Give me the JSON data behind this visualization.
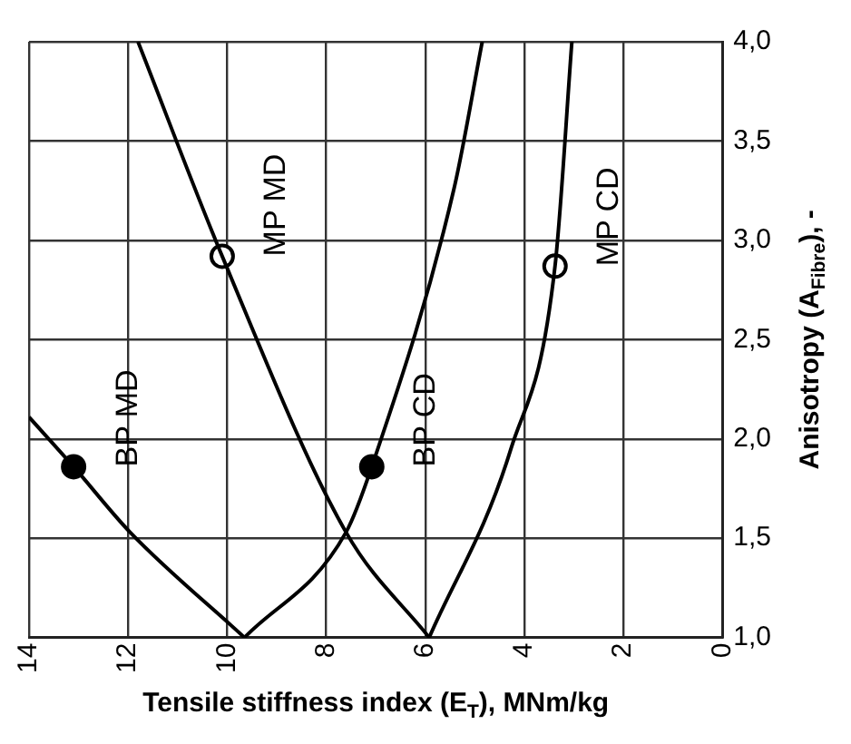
{
  "chart_data": {
    "type": "line",
    "xlabel": "Tensile stiffness index (E$_{T}$), MNm/kg",
    "ylabel": "Anisotropy (A$_{Fibre}$), -",
    "xlim": [
      14,
      0
    ],
    "xticks": [
      14,
      12,
      10,
      8,
      6,
      4,
      2,
      0
    ],
    "ylim": [
      1,
      4
    ],
    "yticks": [
      {
        "value": 1,
        "label": "1,0"
      },
      {
        "value": 1.5,
        "label": "1,5"
      },
      {
        "value": 2,
        "label": "2,0"
      },
      {
        "value": 2.5,
        "label": "2,5"
      },
      {
        "value": 3,
        "label": "3,0"
      },
      {
        "value": 3.5,
        "label": "3,5"
      },
      {
        "value": 4,
        "label": "4,0"
      }
    ],
    "grid": true,
    "legend": false,
    "line_style": "solid",
    "marker": "none",
    "series": [
      {
        "color": "#000000",
        "x": [
          9.65,
          11.96,
          13.1,
          14
        ],
        "values": [
          1.0,
          1.53,
          1.86,
          2.11
        ]
      },
      {
        "color": "#000000",
        "x": [
          9.65,
          7.6,
          7.08,
          5.42,
          4.85
        ],
        "values": [
          1.0,
          1.53,
          1.86,
          3.26,
          4.0
        ]
      },
      {
        "color": "#000000",
        "x": [
          5.92,
          7.6,
          10.1,
          11.8
        ],
        "values": [
          1.0,
          1.53,
          2.92,
          4.0
        ]
      },
      {
        "color": "#000000",
        "x": [
          5.92,
          4.27,
          3.38,
          3.04
        ],
        "values": [
          1.0,
          1.95,
          2.87,
          4.0
        ]
      },
      {
        "type": "scatter",
        "color": "#000000",
        "marker": "circle",
        "x": [
          13.1,
          7.08
        ],
        "values": [
          1.86,
          1.86
        ]
      },
      {
        "type": "scatter",
        "color": "#ffffff",
        "marker": "circle",
        "x": [
          10.1,
          3.38
        ],
        "values": [
          2.92,
          2.87
        ]
      }
    ],
    "annotations": [
      {
        "text": "BP MD",
        "x": 13.1,
        "y": 1.86
      },
      {
        "text": "MP MD",
        "x": 10.1,
        "y": 2.92
      },
      {
        "text": "BP CD",
        "x": 7.08,
        "y": 1.86
      },
      {
        "text": "MP CD",
        "x": 3.38,
        "y": 2.87
      }
    ]
  }
}
